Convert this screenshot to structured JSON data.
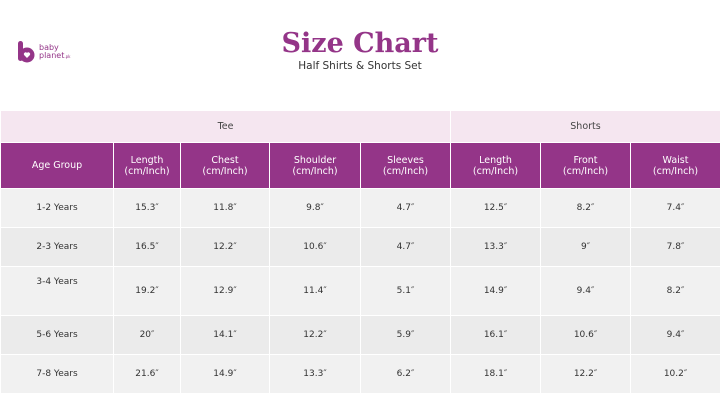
{
  "brand": {
    "line1": "baby",
    "line2": "planet",
    "suffix": ".pk",
    "color": "#943588"
  },
  "header": {
    "title": "Size Chart",
    "subtitle": "Half Shirts & Shorts Set"
  },
  "colors": {
    "accent": "#943588",
    "group_header_bg": "#f5e6f0",
    "row_bg": "#efefef"
  },
  "table": {
    "groups": [
      "Tee",
      "Shorts"
    ],
    "columns": [
      "Age Group",
      "Length\n(cm/Inch)",
      "Chest\n(cm/Inch)",
      "Shoulder\n(cm/Inch)",
      "Sleeves\n(cm/Inch)",
      "Length\n(cm/Inch)",
      "Front\n(cm/Inch)",
      "Waist\n(cm/Inch)"
    ],
    "rows": [
      [
        "1-2 Years",
        "15.3″",
        "11.8″",
        "9.8″",
        "4.7″",
        "12.5″",
        "8.2″",
        "7.4″"
      ],
      [
        "2-3 Years",
        "16.5″",
        "12.2″",
        "10.6″",
        "4.7″",
        "13.3″",
        "9″",
        "7.8″"
      ],
      [
        "3-4 Years",
        "19.2″",
        "12.9″",
        "11.4″",
        "5.1″",
        "14.9″",
        "9.4″",
        "8.2″"
      ],
      [
        "5-6 Years",
        "20″",
        "14.1″",
        "12.2″",
        "5.9″",
        "16.1″",
        "10.6″",
        "9.4″"
      ],
      [
        "7-8 Years",
        "21.6″",
        "14.9″",
        "13.3″",
        "6.2″",
        "18.1″",
        "12.2″",
        "10.2″"
      ]
    ]
  }
}
